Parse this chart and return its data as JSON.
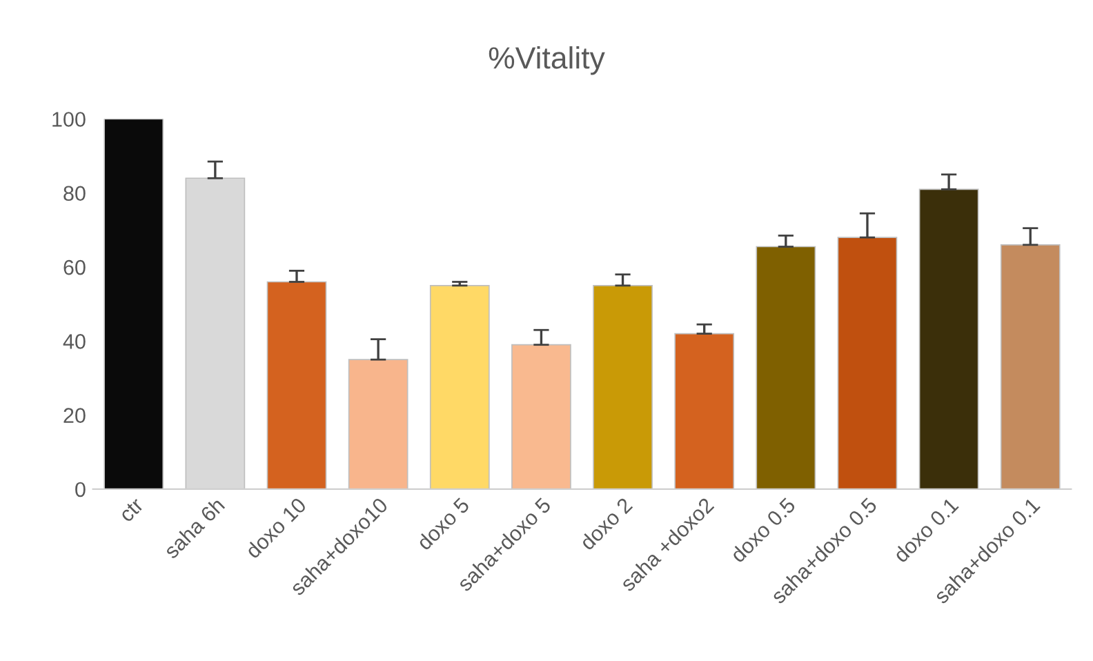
{
  "chart_data": {
    "type": "bar",
    "title": "%Vitality",
    "categories": [
      "ctr",
      "saha 6h",
      "doxo 10",
      "saha+doxo10",
      "doxo 5",
      "saha+doxo 5",
      "doxo 2",
      "saha +doxo2",
      "doxo 0.5",
      "saha+doxo 0.5",
      "doxo 0.1",
      "saha+doxo 0.1"
    ],
    "values": [
      100,
      84,
      56,
      35,
      55,
      39,
      55,
      42,
      65.5,
      68,
      81,
      66
    ],
    "errors": [
      null,
      [
        84,
        88.5
      ],
      [
        56,
        59
      ],
      [
        35,
        40.5
      ],
      [
        55,
        56
      ],
      [
        39,
        43
      ],
      [
        55,
        58
      ],
      [
        42,
        44.5
      ],
      [
        65.5,
        68.5
      ],
      [
        68,
        74.5
      ],
      [
        81,
        85
      ],
      [
        66,
        70.5
      ]
    ],
    "colors": [
      "#0a0a0a",
      "#d9d9d9",
      "#d4621f",
      "#f8b58c",
      "#ffd966",
      "#f9b98f",
      "#c99a06",
      "#d4621f",
      "#7f6000",
      "#c0500f",
      "#3b2f0a",
      "#c48b5e"
    ],
    "ylim": [
      0,
      100
    ],
    "yticks": [
      0,
      20,
      40,
      60,
      80,
      100
    ],
    "grid": false
  }
}
